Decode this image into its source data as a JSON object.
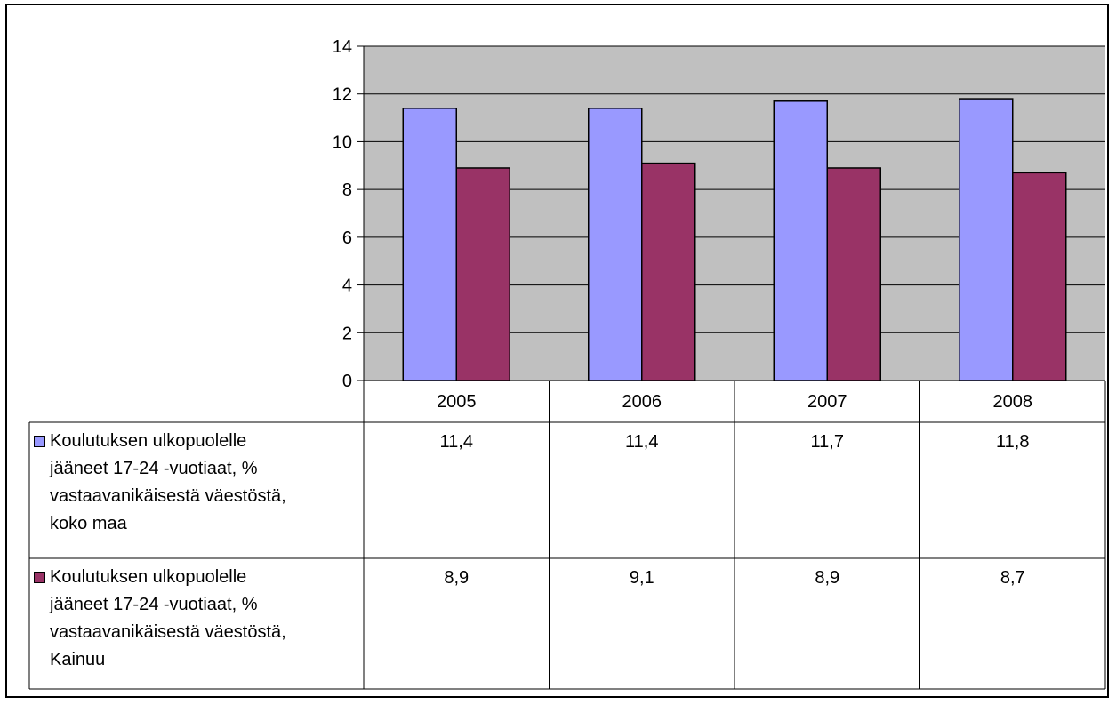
{
  "chart_data": {
    "type": "bar",
    "categories": [
      "2005",
      "2006",
      "2007",
      "2008"
    ],
    "series": [
      {
        "name": "Koulutuksen ulkopuolelle jääneet 17-24 -vuotiaat, % vastaavanikäisestä väestöstä, koko maa",
        "label_lines": [
          "Koulutuksen ulkopuolelle",
          "jääneet 17-24 -vuotiaat, %",
          "vastaavanikäisestä väestöstä,",
          "koko maa"
        ],
        "values": [
          11.4,
          11.4,
          11.7,
          11.8
        ],
        "value_labels": [
          "11,4",
          "11,4",
          "11,7",
          "11,8"
        ],
        "color": "#9999FF"
      },
      {
        "name": "Koulutuksen ulkopuolelle jääneet 17-24 -vuotiaat, % vastaavanikäisestä väestöstä, Kainuu",
        "label_lines": [
          "Koulutuksen ulkopuolelle",
          "jääneet 17-24 -vuotiaat, %",
          "vastaavanikäisestä väestöstä,",
          "Kainuu"
        ],
        "values": [
          8.9,
          9.1,
          8.9,
          8.7
        ],
        "value_labels": [
          "8,9",
          "9,1",
          "8,9",
          "8,7"
        ],
        "color": "#993366"
      }
    ],
    "ylim": [
      0,
      14
    ],
    "yticks": [
      0,
      2,
      4,
      6,
      8,
      10,
      12,
      14
    ],
    "grid": true,
    "plot_background": "#C0C0C0",
    "legend": "data-table"
  }
}
